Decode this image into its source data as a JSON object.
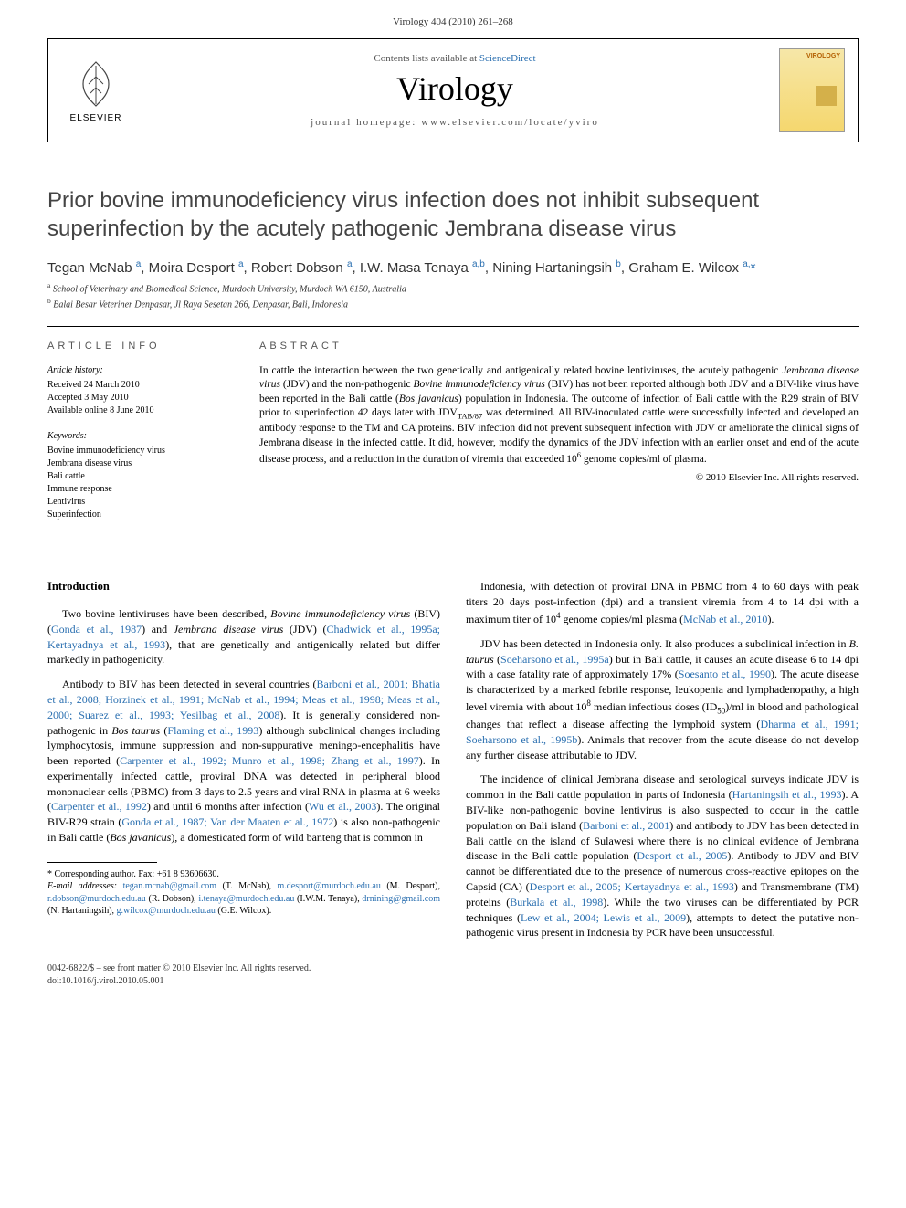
{
  "header": {
    "running_head": "Virology 404 (2010) 261–268",
    "contents_line_pre": "Contents lists available at ",
    "contents_link": "ScienceDirect",
    "journal_name": "Virology",
    "homepage_line": "journal homepage: www.elsevier.com/locate/yviro",
    "elsevier_text": "ELSEVIER",
    "cover_label": "VIROLOGY"
  },
  "article": {
    "title": "Prior bovine immunodeficiency virus infection does not inhibit subsequent superinfection by the acutely pathogenic Jembrana disease virus",
    "authors_html": "Tegan McNab <sup>a</sup>, Moira Desport <sup>a</sup>, Robert Dobson <sup>a</sup>, I.W. Masa Tenaya <sup>a,b</sup>, Nining Hartaningsih <sup>b</sup>, Graham E. Wilcox <sup>a,</sup><span class='star'>*</span>",
    "affiliations": {
      "a": "School of Veterinary and Biomedical Science, Murdoch University, Murdoch WA 6150, Australia",
      "b": "Balai Besar Veteriner Denpasar, Jl Raya Sesetan 266, Denpasar, Bali, Indonesia"
    }
  },
  "article_info": {
    "heading": "ARTICLE INFO",
    "history_label": "Article history:",
    "history": [
      "Received 24 March 2010",
      "Accepted 3 May 2010",
      "Available online 8 June 2010"
    ],
    "keywords_label": "Keywords:",
    "keywords": [
      "Bovine immunodeficiency virus",
      "Jembrana disease virus",
      "Bali cattle",
      "Immune response",
      "Lentivirus",
      "Superinfection"
    ]
  },
  "abstract": {
    "heading": "ABSTRACT",
    "text": "In cattle the interaction between the two genetically and antigenically related bovine lentiviruses, the acutely pathogenic Jembrana disease virus (JDV) and the non-pathogenic Bovine immunodeficiency virus (BIV) has not been reported although both JDV and a BIV-like virus have been reported in the Bali cattle (Bos javanicus) population in Indonesia. The outcome of infection of Bali cattle with the R29 strain of BIV prior to superinfection 42 days later with JDV(TAB/87) was determined. All BIV-inoculated cattle were successfully infected and developed an antibody response to the TM and CA proteins. BIV infection did not prevent subsequent infection with JDV or ameliorate the clinical signs of Jembrana disease in the infected cattle. It did, however, modify the dynamics of the JDV infection with an earlier onset and end of the acute disease process, and a reduction in the duration of viremia that exceeded 10⁶ genome copies/ml of plasma.",
    "copyright": "© 2010 Elsevier Inc. All rights reserved."
  },
  "body": {
    "intro_heading": "Introduction",
    "left_paragraphs": [
      "Two bovine lentiviruses have been described, <i>Bovine immunodeficiency virus</i> (BIV) (<span class='cite'>Gonda et al., 1987</span>) and <i>Jembrana disease virus</i> (JDV) (<span class='cite'>Chadwick et al., 1995a; Kertayadnya et al., 1993</span>), that are genetically and antigenically related but differ markedly in pathogenicity.",
      "Antibody to BIV has been detected in several countries (<span class='cite'>Barboni et al., 2001; Bhatia et al., 2008; Horzinek et al., 1991; McNab et al., 1994; Meas et al., 1998; Meas et al., 2000; Suarez et al., 1993; Yesilbag et al., 2008</span>). It is generally considered non-pathogenic in <i>Bos taurus</i> (<span class='cite'>Flaming et al., 1993</span>) although subclinical changes including lymphocytosis, immune suppression and non-suppurative meningo-encephalitis have been reported (<span class='cite'>Carpenter et al., 1992; Munro et al., 1998; Zhang et al., 1997</span>). In experimentally infected cattle, proviral DNA was detected in peripheral blood mononuclear cells (PBMC) from 3 days to 2.5 years and viral RNA in plasma at 6 weeks (<span class='cite'>Carpenter et al., 1992</span>) and until 6 months after infection (<span class='cite'>Wu et al., 2003</span>). The original BIV-R29 strain (<span class='cite'>Gonda et al., 1987; Van der Maaten et al., 1972</span>) is also non-pathogenic in Bali cattle (<i>Bos javanicus</i>), a domesticated form of wild banteng that is common in"
    ],
    "right_paragraphs": [
      "Indonesia, with detection of proviral DNA in PBMC from 4 to 60 days with peak titers 20 days post-infection (dpi) and a transient viremia from 4 to 14 dpi with a maximum titer of 10⁴ genome copies/ml plasma (<span class='cite'>McNab et al., 2010</span>).",
      "JDV has been detected in Indonesia only. It also produces a subclinical infection in <i>B. taurus</i> (<span class='cite'>Soeharsono et al., 1995a</span>) but in Bali cattle, it causes an acute disease 6 to 14 dpi with a case fatality rate of approximately 17% (<span class='cite'>Soesanto et al., 1990</span>). The acute disease is characterized by a marked febrile response, leukopenia and lymphadenopathy, a high level viremia with about 10⁸ median infectious doses (ID₅₀)/ml in blood and pathological changes that reflect a disease affecting the lymphoid system (<span class='cite'>Dharma et al., 1991; Soeharsono et al., 1995b</span>). Animals that recover from the acute disease do not develop any further disease attributable to JDV.",
      "The incidence of clinical Jembrana disease and serological surveys indicate JDV is common in the Bali cattle population in parts of Indonesia (<span class='cite'>Hartaningsih et al., 1993</span>). A BIV-like non-pathogenic bovine lentivirus is also suspected to occur in the cattle population on Bali island (<span class='cite'>Barboni et al., 2001</span>) and antibody to JDV has been detected in Bali cattle on the island of Sulawesi where there is no clinical evidence of Jembrana disease in the Bali cattle population (<span class='cite'>Desport et al., 2005</span>). Antibody to JDV and BIV cannot be differentiated due to the presence of numerous cross-reactive epitopes on the Capsid (CA) (<span class='cite'>Desport et al., 2005; Kertayadnya et al., 1993</span>) and Transmembrane (TM) proteins (<span class='cite'>Burkala et al., 1998</span>). While the two viruses can be differentiated by PCR techniques (<span class='cite'>Lew et al., 2004; Lewis et al., 2009</span>), attempts to detect the putative non-pathogenic virus present in Indonesia by PCR have been unsuccessful."
    ]
  },
  "footnotes": {
    "corresponding": "* Corresponding author. Fax: +61 8 93606630.",
    "emails_label": "E-mail addresses:",
    "emails": "tegan.mcnab@gmail.com (T. McNab), m.desport@murdoch.edu.au (M. Desport), r.dobson@murdoch.edu.au (R. Dobson), i.tenaya@murdoch.edu.au (I.W.M. Tenaya), drnining@gmail.com (N. Hartaningsih), g.wilcox@murdoch.edu.au (G.E. Wilcox)."
  },
  "footer": {
    "line1": "0042-6822/$ – see front matter © 2010 Elsevier Inc. All rights reserved.",
    "doi": "doi:10.1016/j.virol.2010.05.001"
  },
  "colors": {
    "link": "#2a6fb0",
    "text": "#000000",
    "muted": "#555555",
    "cover_bg_top": "#f6e7a8",
    "cover_bg_bottom": "#f5d76e",
    "cover_label": "#b35f00"
  }
}
